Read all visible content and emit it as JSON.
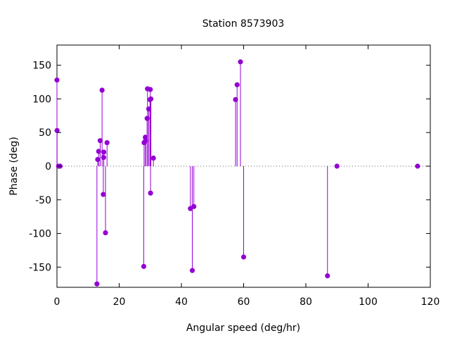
{
  "chart_data": {
    "type": "scatter",
    "style": "impulses-with-points",
    "title": "Station 8573903",
    "xlabel": "Angular speed (deg/hr)",
    "ylabel": "Phase (deg)",
    "xlim": [
      0,
      120
    ],
    "ylim": [
      -180,
      180
    ],
    "xticks": [
      0,
      20,
      40,
      60,
      80,
      100,
      120
    ],
    "yticks": [
      -150,
      -100,
      -50,
      0,
      50,
      100,
      150
    ],
    "xtick_labels": [
      "0",
      "20",
      "40",
      "60",
      "80",
      "100",
      "120"
    ],
    "ytick_labels": [
      "-150",
      "-100",
      "-50",
      "0",
      "50",
      "100",
      "150"
    ],
    "zero_line": "dotted",
    "grid": false,
    "series_color": "#9400d3",
    "points": [
      {
        "x": 0.0,
        "y": 128
      },
      {
        "x": 0.04,
        "y": 53
      },
      {
        "x": 0.5,
        "y": 0
      },
      {
        "x": 1.0,
        "y": 0
      },
      {
        "x": 12.85,
        "y": -175
      },
      {
        "x": 13.1,
        "y": 10
      },
      {
        "x": 13.4,
        "y": 22
      },
      {
        "x": 13.9,
        "y": 38
      },
      {
        "x": 14.5,
        "y": 113
      },
      {
        "x": 14.9,
        "y": -42
      },
      {
        "x": 15.0,
        "y": 13
      },
      {
        "x": 15.05,
        "y": 21
      },
      {
        "x": 15.6,
        "y": -99
      },
      {
        "x": 16.1,
        "y": 35
      },
      {
        "x": 27.9,
        "y": -149
      },
      {
        "x": 28.0,
        "y": 35
      },
      {
        "x": 28.4,
        "y": 43
      },
      {
        "x": 28.5,
        "y": 38
      },
      {
        "x": 28.98,
        "y": 71
      },
      {
        "x": 29.1,
        "y": 115
      },
      {
        "x": 29.5,
        "y": 85
      },
      {
        "x": 29.9,
        "y": 99
      },
      {
        "x": 30.0,
        "y": 114
      },
      {
        "x": 30.08,
        "y": -40
      },
      {
        "x": 30.2,
        "y": 100
      },
      {
        "x": 31.0,
        "y": 12
      },
      {
        "x": 42.9,
        "y": -63
      },
      {
        "x": 43.5,
        "y": -155
      },
      {
        "x": 44.0,
        "y": -60
      },
      {
        "x": 57.4,
        "y": 99
      },
      {
        "x": 57.9,
        "y": 121
      },
      {
        "x": 58.98,
        "y": 155
      },
      {
        "x": 60.0,
        "y": -135
      },
      {
        "x": 86.95,
        "y": -163
      },
      {
        "x": 90.0,
        "y": 0
      },
      {
        "x": 115.9,
        "y": 0
      }
    ]
  }
}
